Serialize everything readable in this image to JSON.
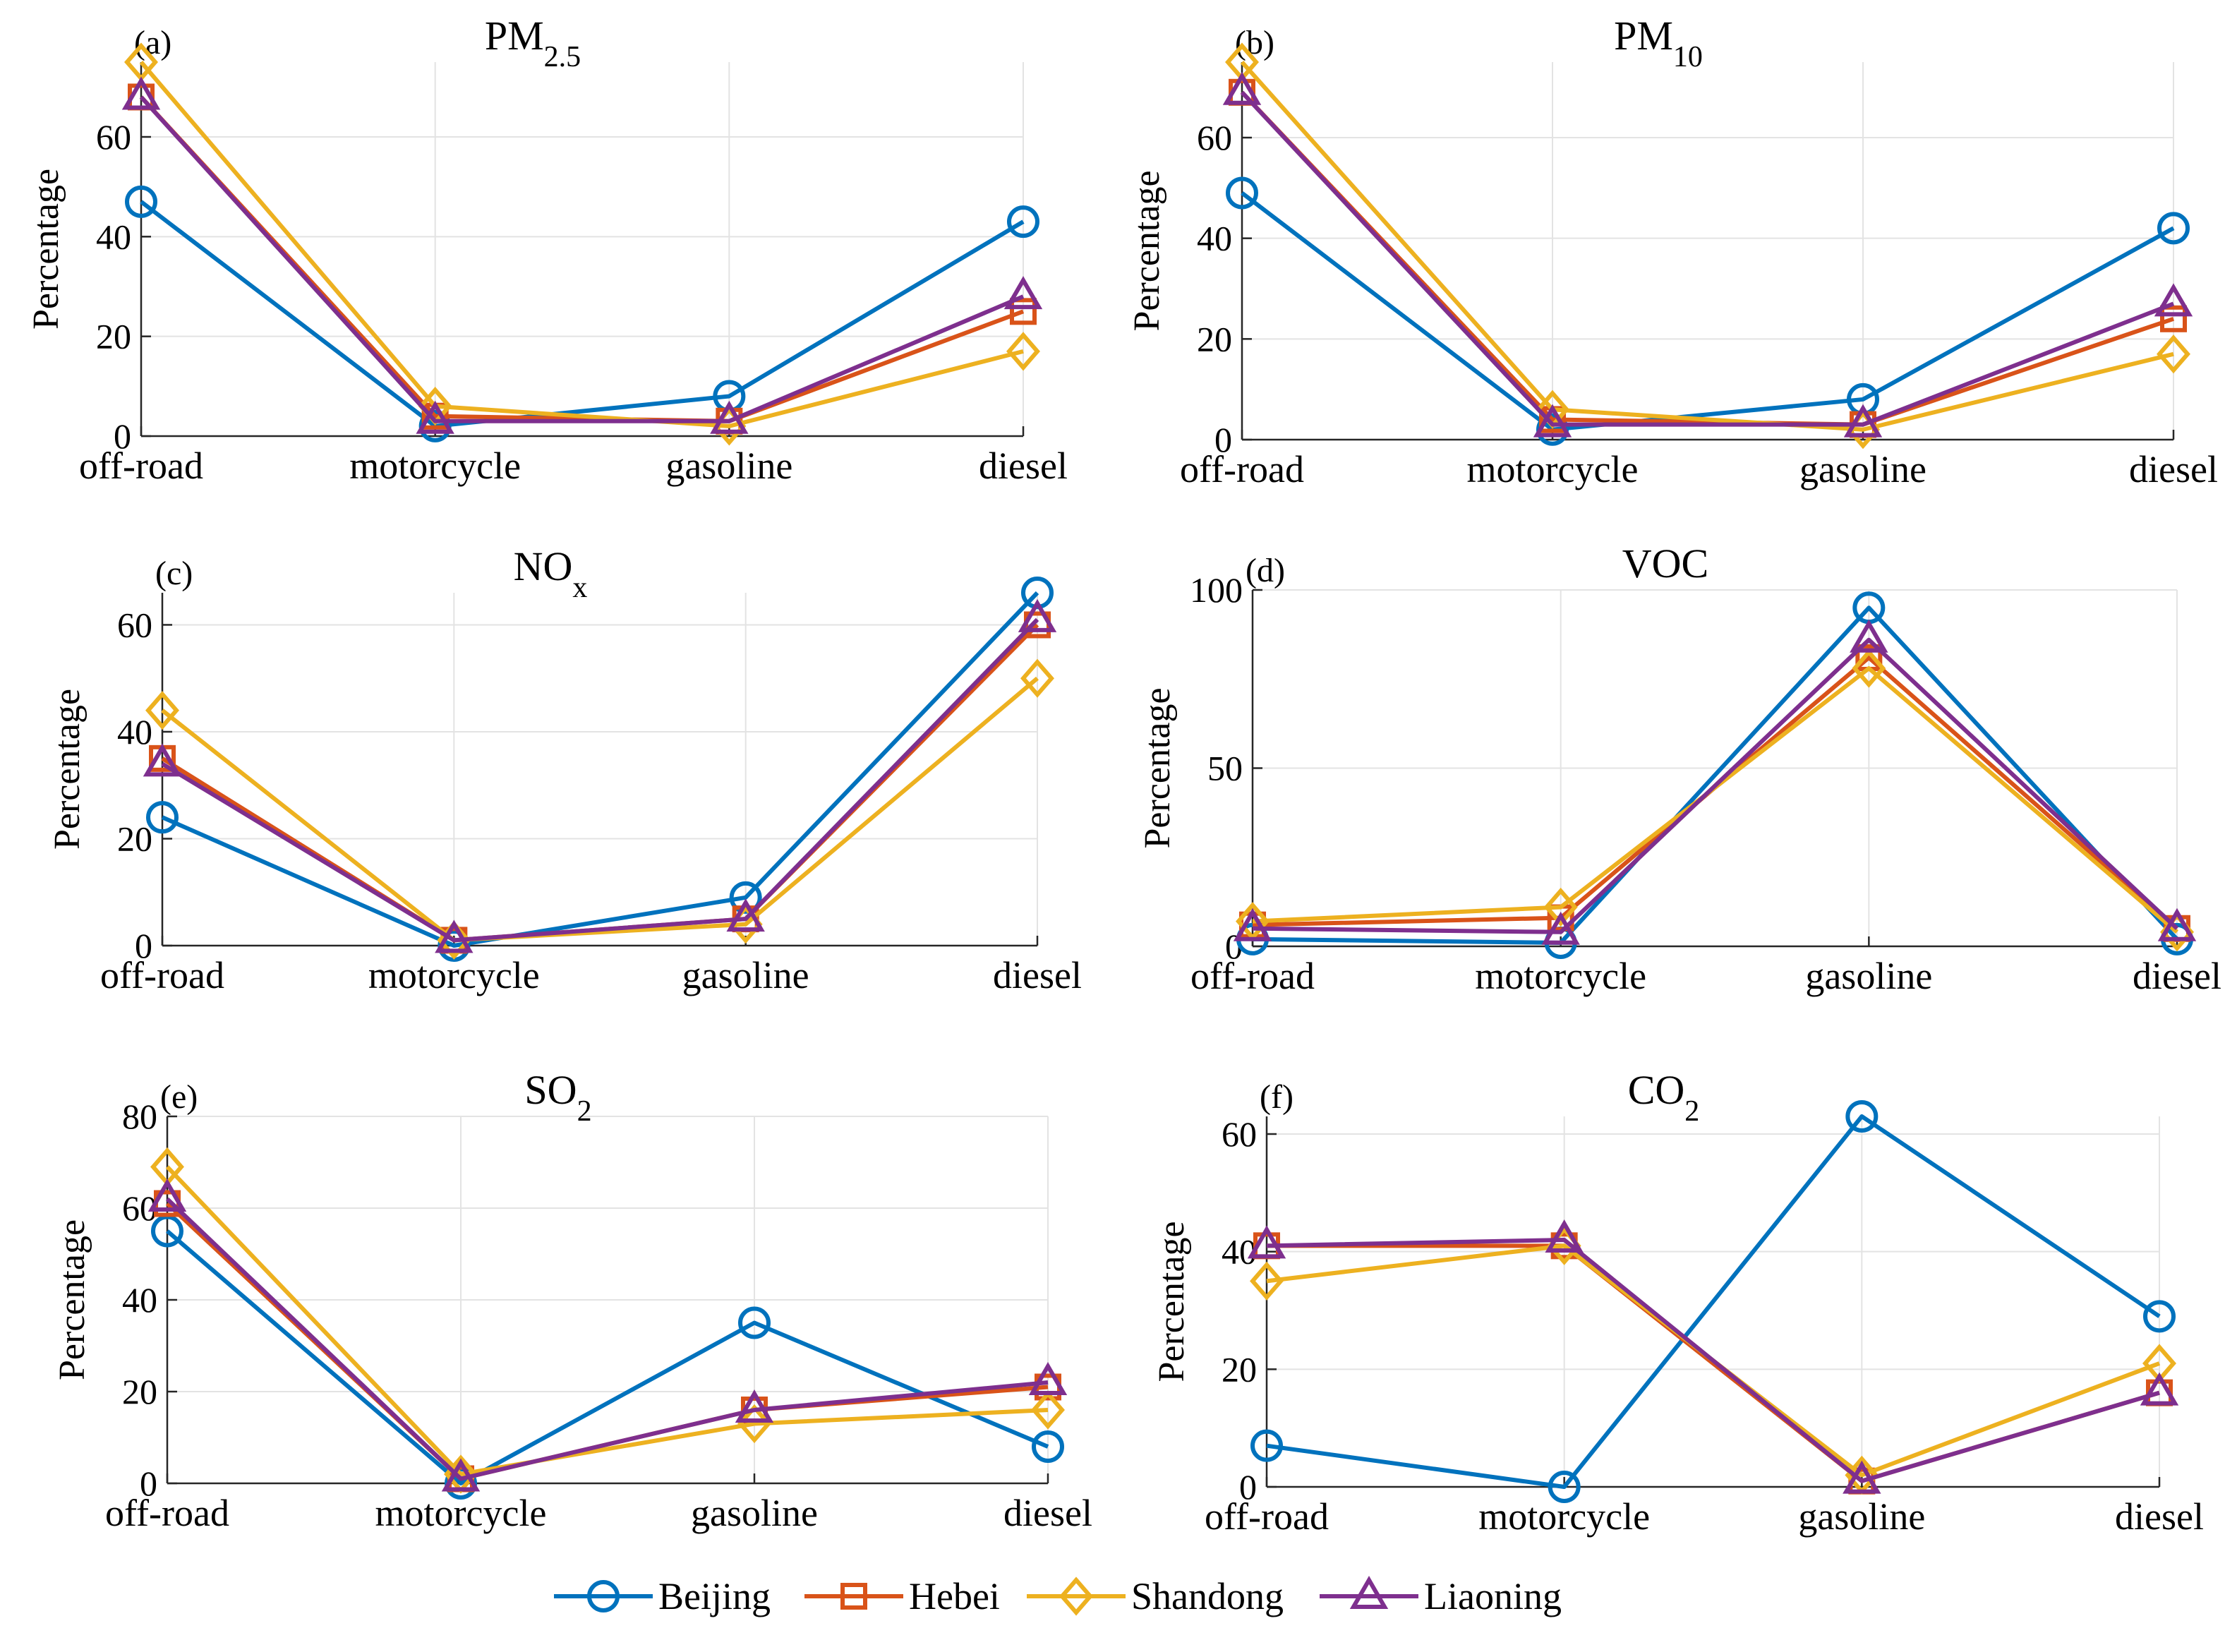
{
  "categories": [
    "off-road",
    "motorcycle",
    "gasoline",
    "diesel"
  ],
  "ylabel": "Percentage",
  "colors": {
    "Beijing": "#0072BD",
    "Hebei": "#D95319",
    "Shandong": "#EDB120",
    "Liaoning": "#7E2F8E"
  },
  "legend": [
    {
      "name": "Beijing",
      "marker": "circle"
    },
    {
      "name": "Hebei",
      "marker": "square"
    },
    {
      "name": "Shandong",
      "marker": "diamond"
    },
    {
      "name": "Liaoning",
      "marker": "triangle"
    }
  ],
  "chart_data": [
    {
      "type": "line",
      "tag": "(a)",
      "title": "PM",
      "title_sub": "2.5",
      "xlabel": "",
      "ylabel": "Percentage",
      "categories": [
        "off-road",
        "motorcycle",
        "gasoline",
        "diesel"
      ],
      "ylim": [
        0,
        75
      ],
      "yticks": [
        0,
        20,
        40,
        60
      ],
      "series": [
        {
          "name": "Beijing",
          "values": [
            47,
            2,
            8,
            43
          ]
        },
        {
          "name": "Hebei",
          "values": [
            68,
            4,
            3,
            25
          ]
        },
        {
          "name": "Shandong",
          "values": [
            75,
            6,
            2,
            17
          ]
        },
        {
          "name": "Liaoning",
          "values": [
            68,
            3,
            3,
            28
          ]
        }
      ]
    },
    {
      "type": "line",
      "tag": "(b)",
      "title": "PM",
      "title_sub": "10",
      "xlabel": "",
      "ylabel": "Percentage",
      "categories": [
        "off-road",
        "motorcycle",
        "gasoline",
        "diesel"
      ],
      "ylim": [
        0,
        75
      ],
      "yticks": [
        0,
        20,
        40,
        60
      ],
      "series": [
        {
          "name": "Beijing",
          "values": [
            49,
            2,
            8,
            42
          ]
        },
        {
          "name": "Hebei",
          "values": [
            69,
            4,
            3,
            24
          ]
        },
        {
          "name": "Shandong",
          "values": [
            75,
            6,
            2,
            17
          ]
        },
        {
          "name": "Liaoning",
          "values": [
            69,
            3,
            3,
            27
          ]
        }
      ]
    },
    {
      "type": "line",
      "tag": "(c)",
      "title": "NO",
      "title_sub": "x",
      "xlabel": "",
      "ylabel": "Percentage",
      "categories": [
        "off-road",
        "motorcycle",
        "gasoline",
        "diesel"
      ],
      "ylim": [
        0,
        66
      ],
      "yticks": [
        0,
        20,
        40,
        60
      ],
      "series": [
        {
          "name": "Beijing",
          "values": [
            24,
            0,
            9,
            66
          ]
        },
        {
          "name": "Hebei",
          "values": [
            35,
            1,
            5,
            60
          ]
        },
        {
          "name": "Shandong",
          "values": [
            44,
            1,
            4,
            50
          ]
        },
        {
          "name": "Liaoning",
          "values": [
            34,
            1,
            5,
            61
          ]
        }
      ]
    },
    {
      "type": "line",
      "tag": "(d)",
      "title": "VOC",
      "title_sub": "",
      "xlabel": "",
      "ylabel": "Percentage",
      "categories": [
        "off-road",
        "motorcycle",
        "gasoline",
        "diesel"
      ],
      "ylim": [
        0,
        100
      ],
      "yticks": [
        0,
        50,
        100
      ],
      "series": [
        {
          "name": "Beijing",
          "values": [
            2,
            1,
            95,
            2
          ]
        },
        {
          "name": "Hebei",
          "values": [
            6,
            8,
            81,
            5
          ]
        },
        {
          "name": "Shandong",
          "values": [
            7,
            11,
            78,
            4
          ]
        },
        {
          "name": "Liaoning",
          "values": [
            5,
            4,
            86,
            5
          ]
        }
      ]
    },
    {
      "type": "line",
      "tag": "(e)",
      "title": "SO",
      "title_sub": "2",
      "xlabel": "",
      "ylabel": "Percentage",
      "categories": [
        "off-road",
        "motorcycle",
        "gasoline",
        "diesel"
      ],
      "ylim": [
        0,
        80
      ],
      "yticks": [
        0,
        20,
        40,
        60,
        80
      ],
      "series": [
        {
          "name": "Beijing",
          "values": [
            55,
            0,
            35,
            8
          ]
        },
        {
          "name": "Hebei",
          "values": [
            61,
            1,
            16,
            21
          ]
        },
        {
          "name": "Shandong",
          "values": [
            69,
            2,
            13,
            16
          ]
        },
        {
          "name": "Liaoning",
          "values": [
            62,
            1,
            16,
            22
          ]
        }
      ]
    },
    {
      "type": "line",
      "tag": "(f)",
      "title": "CO",
      "title_sub": "2",
      "xlabel": "",
      "ylabel": "Percentage",
      "categories": [
        "off-road",
        "motorcycle",
        "gasoline",
        "diesel"
      ],
      "ylim": [
        0,
        63
      ],
      "yticks": [
        0,
        20,
        40,
        60
      ],
      "series": [
        {
          "name": "Beijing",
          "values": [
            7,
            0,
            63,
            29
          ]
        },
        {
          "name": "Hebei",
          "values": [
            41,
            41,
            1,
            16
          ]
        },
        {
          "name": "Shandong",
          "values": [
            35,
            41,
            2,
            21
          ]
        },
        {
          "name": "Liaoning",
          "values": [
            41,
            42,
            1,
            16
          ]
        }
      ]
    }
  ]
}
